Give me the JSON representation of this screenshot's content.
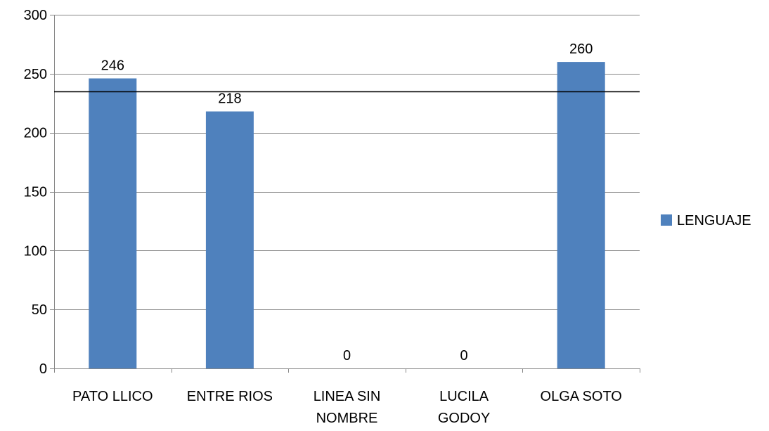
{
  "chart_data": {
    "type": "bar",
    "categories": [
      "PATO LLICO",
      "ENTRE RIOS",
      "LINEA SIN NOMBRE",
      "LUCILA GODOY",
      "OLGA SOTO"
    ],
    "category_lines": [
      [
        "PATO LLICO"
      ],
      [
        "ENTRE RIOS"
      ],
      [
        "LINEA SIN",
        "NOMBRE"
      ],
      [
        "LUCILA",
        "GODOY"
      ],
      [
        "OLGA SOTO"
      ]
    ],
    "series": [
      {
        "name": "LENGUAJE",
        "values": [
          246,
          218,
          0,
          0,
          260
        ],
        "color": "#4F81BD"
      }
    ],
    "data_labels": [
      "246",
      "218",
      "0",
      "0",
      "260"
    ],
    "reference_line": 235,
    "ylim": [
      0,
      300
    ],
    "yticks": [
      0,
      50,
      100,
      150,
      200,
      250,
      300
    ],
    "grid": true,
    "legend_position": "right"
  }
}
